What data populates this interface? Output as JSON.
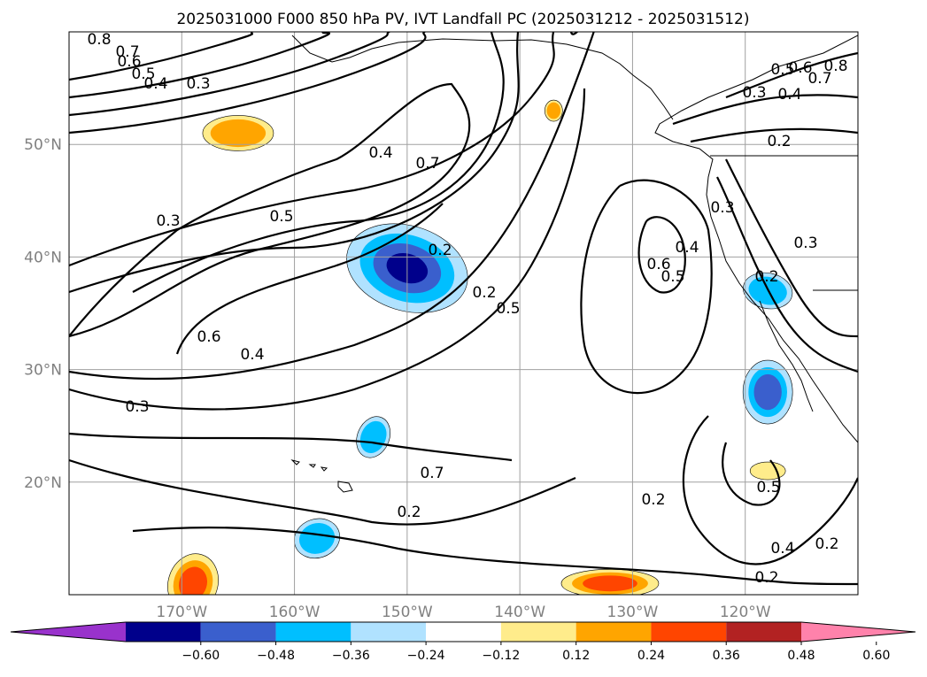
{
  "chart_data": {
    "type": "heatmap",
    "title": "2025031000 F000 850 hPa PV, IVT Landfall PC (2025031212 - 2025031512)",
    "map": {
      "projection": "PlateCarree",
      "lon_range": [
        -180,
        -110
      ],
      "lat_range": [
        10,
        60
      ],
      "gridlines": true,
      "lat_ticks": [
        {
          "value": 20,
          "label": "20°N"
        },
        {
          "value": 30,
          "label": "30°N"
        },
        {
          "value": 40,
          "label": "40°N"
        },
        {
          "value": 50,
          "label": "50°N"
        }
      ],
      "lon_ticks": [
        {
          "value": -170,
          "label": "170°W"
        },
        {
          "value": -160,
          "label": "160°W"
        },
        {
          "value": -150,
          "label": "150°W"
        },
        {
          "value": -140,
          "label": "140°W"
        },
        {
          "value": -130,
          "label": "130°W"
        },
        {
          "value": -120,
          "label": "120°W"
        }
      ]
    },
    "filled_field": {
      "levels": [
        -0.72,
        -0.6,
        -0.48,
        -0.36,
        -0.24,
        -0.12,
        0.12,
        0.24,
        0.36,
        0.48,
        0.6,
        0.72
      ],
      "colors": [
        "#9932cc",
        "#00008b",
        "#3a5fcd",
        "#00bfff",
        "#b0e2ff",
        "#ffffff",
        "#ffec8b",
        "#ffa500",
        "#ff4500",
        "#b22222",
        "#ff82ab"
      ],
      "extend": "both",
      "regions": [
        {
          "lon": -150,
          "lat": 39,
          "peak": -0.55
        },
        {
          "lon": -118,
          "lat": 28,
          "peak": -0.45
        },
        {
          "lon": -153,
          "lat": 24,
          "peak": -0.3
        },
        {
          "lon": -118,
          "lat": 37,
          "peak": -0.3
        },
        {
          "lon": -158,
          "lat": 15,
          "peak": -0.3
        },
        {
          "lon": -165,
          "lat": 51,
          "peak": 0.3
        },
        {
          "lon": -137,
          "lat": 53,
          "peak": 0.3
        },
        {
          "lon": -132,
          "lat": 11,
          "peak": 0.4
        },
        {
          "lon": -169,
          "lat": 11,
          "peak": 0.45
        },
        {
          "lon": -118,
          "lat": 21,
          "peak": 0.2
        }
      ]
    },
    "contour_field": {
      "variable": "850 hPa PV",
      "levels": [
        0.2,
        0.3,
        0.4,
        0.5,
        0.6,
        0.7,
        0.8
      ]
    },
    "contour_labels": [
      "0.8",
      "0.7",
      "0.6",
      "0.5",
      "0.4",
      "0.3",
      "0.4",
      "0.7",
      "0.5",
      "0.3",
      "0.6",
      "0.4",
      "0.3",
      "0.7",
      "0.2",
      "0.2",
      "0.2",
      "0.5",
      "0.6",
      "0.5",
      "0.4",
      "0.3",
      "0.3",
      "0.2",
      "0.2",
      "0.5",
      "0.4",
      "0.2",
      "0.2",
      "0.8",
      "0.7",
      "0.6",
      "0.5",
      "0.4",
      "0.3",
      "0.2"
    ],
    "colorbar": {
      "orientation": "horizontal",
      "ticks": [
        {
          "value": -0.6,
          "label": "−0.60"
        },
        {
          "value": -0.48,
          "label": "−0.48"
        },
        {
          "value": -0.36,
          "label": "−0.36"
        },
        {
          "value": -0.24,
          "label": "−0.24"
        },
        {
          "value": -0.12,
          "label": "−0.12"
        },
        {
          "value": 0.12,
          "label": "0.12"
        },
        {
          "value": 0.24,
          "label": "0.24"
        },
        {
          "value": 0.36,
          "label": "0.36"
        },
        {
          "value": 0.48,
          "label": "0.48"
        },
        {
          "value": 0.6,
          "label": "0.60"
        }
      ]
    }
  }
}
